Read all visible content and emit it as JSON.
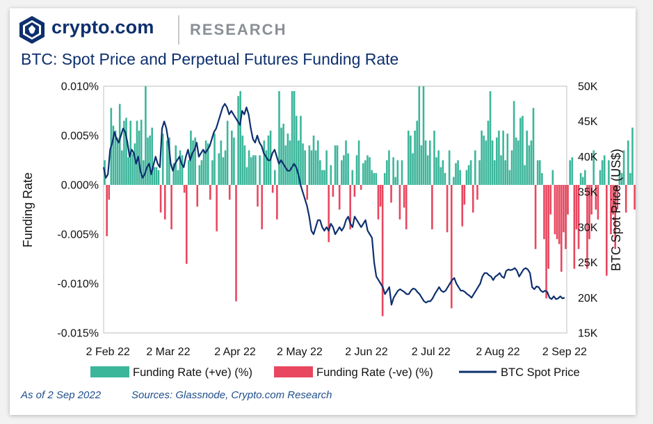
{
  "header": {
    "brand": "crypto.com",
    "unit": "RESEARCH",
    "title": "BTC: Spot Price and Perpetual Futures Funding Rate"
  },
  "footer": {
    "date_note": "As of 2 Sep 2022",
    "sources": "Sources: Glassnode, Crypto.com Research"
  },
  "colors": {
    "positive": "#3cb69b",
    "negative": "#e8475f",
    "price_line": "#0d2f6e",
    "brand": "#0d2f6e"
  },
  "chart_data": {
    "type": "bar+line",
    "title": "BTC: Spot Price and Perpetual Futures Funding Rate",
    "x_start_date": "2022-01-31",
    "x_ticks": [
      "2 Feb 22",
      "2 Mar 22",
      "2 Apr 22",
      "2 May 22",
      "2 Jun 22",
      "2 Jul 22",
      "2 Aug 22",
      "2 Sep 22"
    ],
    "x_range": [
      "2022-01-31",
      "2022-09-03"
    ],
    "y_left": {
      "label": "Funding Rate",
      "range": [
        -0.015,
        0.01
      ],
      "ticks": [
        0.01,
        0.005,
        0.0,
        -0.005,
        -0.01,
        -0.015
      ],
      "tick_labels": [
        "0.010%",
        "0.005%",
        "0.000%",
        "-0.005%",
        "-0.010%",
        "-0.015%"
      ]
    },
    "y_right": {
      "label": "BTC Spot Price (US$)",
      "range": [
        15000,
        50000
      ],
      "ticks": [
        50000,
        45000,
        40000,
        35000,
        30000,
        25000,
        20000,
        15000
      ],
      "tick_labels": [
        "50K",
        "45K",
        "40K",
        "35K",
        "30K",
        "25K",
        "20K",
        "15K"
      ]
    },
    "legend": [
      "Funding Rate (+ve) (%)",
      "Funding Rate (-ve) (%)",
      "BTC Spot Price"
    ],
    "legend_position": "bottom",
    "funding_rate_pct": [
      0.0025,
      -0.0052,
      -0.0015,
      0.0078,
      0.006,
      0.0055,
      0.0048,
      0.0082,
      0.0035,
      0.0065,
      0.0068,
      0.0028,
      0.0065,
      0.0032,
      0.0042,
      0.0065,
      0.0055,
      0.0066,
      0.0025,
      0.01,
      0.0048,
      0.005,
      0.0058,
      0.0018,
      0.0018,
      0.0015,
      -0.0028,
      0.0052,
      -0.0035,
      0.0045,
      0.0048,
      -0.0045,
      0.0022,
      0.004,
      0.0015,
      0.0035,
      0.003,
      -0.0008,
      -0.008,
      0.0025,
      0.0055,
      0.0045,
      0.0048,
      -0.0022,
      0.002,
      0.0025,
      0.0035,
      0.0045,
      0.0042,
      -0.0015,
      0.0025,
      0.0052,
      -0.0047,
      0.0032,
      0.0045,
      0.0028,
      0.0035,
      0.0065,
      -0.0015,
      0.0055,
      0.0048,
      -0.0118,
      0.009,
      0.0095,
      0.005,
      0.004,
      0.0018,
      0.0035,
      0.0028,
      0.003,
      0.003,
      -0.0022,
      0.003,
      -0.0045,
      0.0045,
      0.0035,
      0.005,
      0.0055,
      -0.0008,
      0.0015,
      -0.0035,
      0.0095,
      0.0058,
      0.0062,
      0.004,
      0.0052,
      0.0045,
      0.0095,
      0.0095,
      0.007,
      0.0045,
      0.007,
      0.0042,
      0.0035,
      -0.0015,
      0.004,
      0.0035,
      0.005,
      0.0035,
      0.0045,
      0.0025,
      0.0015,
      0.0015,
      0.0035,
      -0.0058,
      0.002,
      -0.0012,
      0.004,
      0.004,
      -0.0025,
      0.0025,
      0.003,
      0.0045,
      0.0032,
      -0.0045,
      0.0015,
      -0.0012,
      0.003,
      0.0045,
      -0.0005,
      0.0022,
      0.0025,
      0.003,
      0.0028,
      0.0015,
      0.0012,
      0.0012,
      -0.0035,
      -0.0022,
      -0.0133,
      0.0012,
      0.0025,
      0.0035,
      -0.0018,
      0.0028,
      0.0008,
      0.0025,
      -0.0035,
      0.0025,
      -0.0023,
      -0.0045,
      0.0055,
      0.005,
      0.0032,
      0.0055,
      0.0065,
      0.01,
      0.004,
      0.01,
      0.0045,
      0.003,
      0.0045,
      -0.0045,
      0.0055,
      0.0028,
      0.0035,
      0.0018,
      0.0025,
      0.0012,
      -0.0048,
      0.0035,
      -0.0125,
      0.0008,
      0.0022,
      0.0025,
      0.0015,
      -0.0042,
      -0.002,
      0.0015,
      0.002,
      0.0025,
      -0.0028,
      0.0035,
      -0.0015,
      0.0025,
      0.0055,
      0.005,
      0.0045,
      0.0065,
      0.0095,
      0.0045,
      0.0025,
      0.0048,
      0.0055,
      0.003,
      0.0055,
      0.0025,
      0.0052,
      0.0015,
      0.0035,
      0.0085,
      0.0048,
      0.0045,
      0.0068,
      0.007,
      0.002,
      0.0055,
      0.004,
      0.0045,
      0.0078,
      -0.0065,
      0.0025,
      0.0025,
      0.0012,
      -0.0055,
      -0.0115,
      -0.0085,
      -0.003,
      0.0015,
      -0.005,
      -0.0055,
      -0.006,
      -0.0088,
      -0.0048,
      -0.0065,
      -0.003,
      0.0025,
      0.0028,
      -0.0085,
      -0.0045,
      -0.0065,
      0.0012,
      0.0008,
      0.0015,
      -0.0085,
      -0.0055,
      -0.003,
      0.0035,
      -0.0025,
      -0.0035,
      0.0015,
      0.0025,
      0.003,
      -0.0092,
      0.0025,
      -0.005,
      -0.003,
      -0.0065,
      -0.0025,
      0.0015,
      0.0012,
      0.0035,
      -0.0028,
      0.0045,
      0.0012,
      0.0058,
      -0.0025,
      0.0055,
      -0.0015,
      0.0065,
      0.0025,
      0.0048,
      0.0025,
      -0.0045,
      0.0015,
      0.0055,
      0.0045,
      0.0072,
      0.0102,
      0.008,
      0.0035,
      0.0055,
      0.0052,
      0.0045,
      0.0075,
      0.0025,
      0.0015,
      0.0048,
      0.0055,
      0.0075,
      -0.0032,
      0.0035,
      0.0075,
      0.002,
      0.0065,
      0.007,
      0.0035,
      0.0035,
      0.0025,
      0.0055,
      0.0055,
      0.0015,
      0.0035,
      0.006,
      0.0025,
      0.003,
      0.0045,
      -0.002,
      0.0015,
      0.0055,
      0.0008,
      0.0025,
      0.0045,
      -0.0035,
      -0.0045,
      -0.0025,
      -0.0065,
      -0.0058,
      -0.0048,
      0.0012,
      0.0025,
      0.0015,
      -0.0038,
      -0.0015,
      -0.0035,
      -0.0055,
      -0.0025,
      -0.0085,
      -0.0045,
      0.0038,
      0.0008,
      -0.0015
    ],
    "btc_price_usd": [
      38500,
      37000,
      37500,
      41000,
      42000,
      43500,
      42500,
      42000,
      43000,
      44000,
      43500,
      42000,
      40000,
      41000,
      40500,
      39000,
      40000,
      38000,
      37000,
      37500,
      38500,
      39000,
      37500,
      38800,
      40000,
      39000,
      38500,
      44000,
      45000,
      44000,
      42000,
      39000,
      38000,
      39000,
      39500,
      40000,
      39000,
      38500,
      40000,
      41000,
      39500,
      40500,
      41000,
      42000,
      40000,
      40500,
      41000,
      40500,
      41000,
      41500,
      42500,
      43500,
      44000,
      45000,
      46000,
      47000,
      47500,
      47000,
      46000,
      46500,
      46000,
      45500,
      45000,
      44500,
      46500,
      46000,
      47000,
      46000,
      44000,
      42500,
      42000,
      43000,
      42000,
      41500,
      40500,
      40000,
      39500,
      39500,
      40500,
      41000,
      40000,
      39000,
      39500,
      39000,
      38500,
      38000,
      38000,
      38500,
      39000,
      38500,
      37500,
      36000,
      35000,
      34000,
      33000,
      31500,
      29500,
      29000,
      30000,
      31000,
      31000,
      30000,
      29500,
      30000,
      29500,
      30500,
      30000,
      29000,
      29500,
      30000,
      29500,
      30000,
      31000,
      31500,
      30500,
      30000,
      31500,
      31000,
      30500,
      30000,
      30500,
      31000,
      29500,
      29000,
      28500,
      25000,
      23000,
      22500,
      22000,
      21500,
      20500,
      21000,
      21500,
      19000,
      20000,
      20500,
      21000,
      21200,
      21000,
      20800,
      20500,
      20500,
      21000,
      21300,
      21200,
      20800,
      20500,
      20000,
      19500,
      19300,
      19500,
      19500,
      19900,
      20500,
      21000,
      21500,
      21000,
      20800,
      21000,
      21500,
      22000,
      22500,
      22800,
      22000,
      21500,
      21000,
      21000,
      20800,
      20500,
      20300,
      20000,
      20500,
      21000,
      21500,
      22000,
      23000,
      23500,
      23500,
      23200,
      23000,
      22500,
      23000,
      23200,
      23500,
      23000,
      22800,
      23800,
      24000,
      23900,
      24000,
      24200,
      23800,
      23000,
      23500,
      24000,
      24200,
      24000,
      23500,
      21500,
      21200,
      21600,
      21500,
      21000,
      20800,
      21000,
      20800,
      20000,
      19800,
      20200,
      19800,
      19900,
      20200,
      19900,
      20000
    ],
    "btc_price_start_date": "2022-01-31",
    "btc_price_end_date": "2022-09-02"
  }
}
